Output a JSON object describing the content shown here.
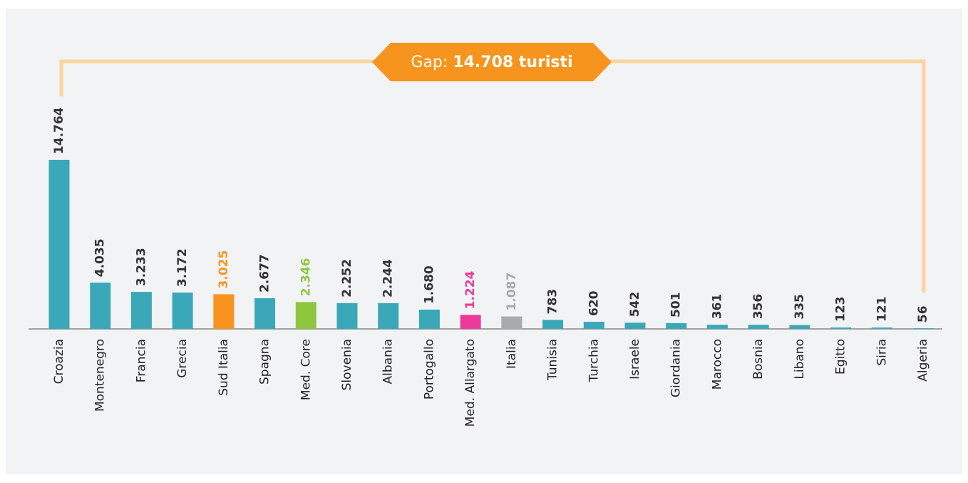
{
  "chart_data": {
    "type": "bar",
    "categories": [
      "Croazia",
      "Montenegro",
      "Francia",
      "Grecia",
      "Sud Italia",
      "Spagna",
      "Med. Core",
      "Slovenia",
      "Albania",
      "Portogallo",
      "Med. Allargato",
      "Italia",
      "Tunisia",
      "Turchia",
      "Israele",
      "Giordania",
      "Marocco",
      "Bosnia",
      "Libano",
      "Egitto",
      "Siria",
      "Algeria"
    ],
    "values": [
      14764,
      4035,
      3233,
      3172,
      3025,
      2677,
      2346,
      2252,
      2244,
      1680,
      1224,
      1087,
      783,
      620,
      542,
      501,
      361,
      356,
      335,
      123,
      121,
      56
    ],
    "value_labels": [
      "14.764",
      "4.035",
      "3.233",
      "3.172",
      "3.025",
      "2.677",
      "2.346",
      "2.252",
      "2.244",
      "1.680",
      "1.224",
      "1.087",
      "783",
      "620",
      "542",
      "501",
      "361",
      "356",
      "335",
      "123",
      "121",
      "56"
    ],
    "color": "#3aa8b8",
    "colors": [
      "#3aa8b8",
      "#3aa8b8",
      "#3aa8b8",
      "#3aa8b8",
      "#f7941d",
      "#3aa8b8",
      "#8dc63f",
      "#3aa8b8",
      "#3aa8b8",
      "#3aa8b8",
      "#ec3a9a",
      "#aaaaaa",
      "#3aa8b8",
      "#3aa8b8",
      "#3aa8b8",
      "#3aa8b8",
      "#3aa8b8",
      "#3aa8b8",
      "#3aa8b8",
      "#3aa8b8",
      "#3aa8b8",
      "#3aa8b8"
    ],
    "annotation": {
      "prefix": "Gap:",
      "text": "14.708 turisti"
    }
  }
}
